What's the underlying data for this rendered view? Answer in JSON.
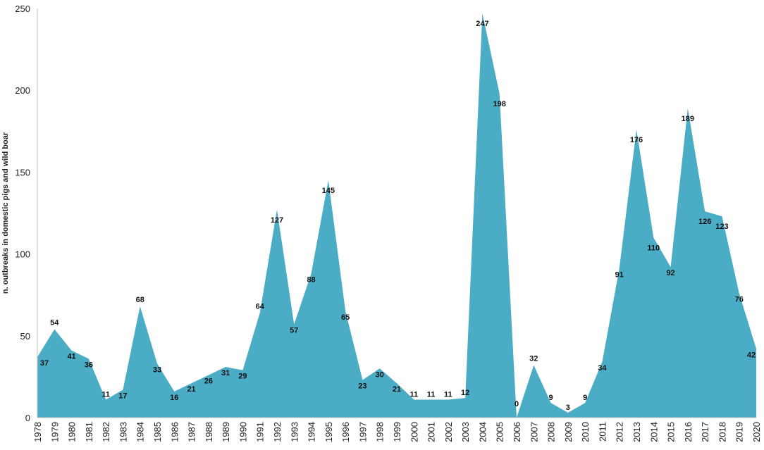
{
  "chart_data": {
    "type": "area",
    "title": "",
    "xlabel": "",
    "ylabel": "n. outbreaks in domestic pigs and wild boar",
    "ylim": [
      0,
      250
    ],
    "yticks": [
      0,
      50,
      100,
      150,
      200,
      250
    ],
    "grid": false,
    "legend": "none",
    "fill_color": "#4BACC6",
    "categories": [
      "1978",
      "1979",
      "1980",
      "1981",
      "1982",
      "1983",
      "1984",
      "1985",
      "1986",
      "1987",
      "1988",
      "1989",
      "1990",
      "1991",
      "1992",
      "1993",
      "1994",
      "1995",
      "1996",
      "1997",
      "1998",
      "1999",
      "2000",
      "2001",
      "2002",
      "2003",
      "2004",
      "2005",
      "2006",
      "2007",
      "2008",
      "2009",
      "2010",
      "2011",
      "2012",
      "2013",
      "2014",
      "2015",
      "2016",
      "2017",
      "2018",
      "2019",
      "2020"
    ],
    "values": [
      37,
      54,
      41,
      36,
      11,
      17,
      68,
      33,
      16,
      21,
      26,
      31,
      29,
      64,
      127,
      57,
      88,
      145,
      65,
      23,
      30,
      21,
      11,
      11,
      11,
      12,
      247,
      198,
      0,
      32,
      9,
      3,
      9,
      34,
      91,
      176,
      110,
      92,
      189,
      126,
      123,
      76,
      42
    ]
  }
}
